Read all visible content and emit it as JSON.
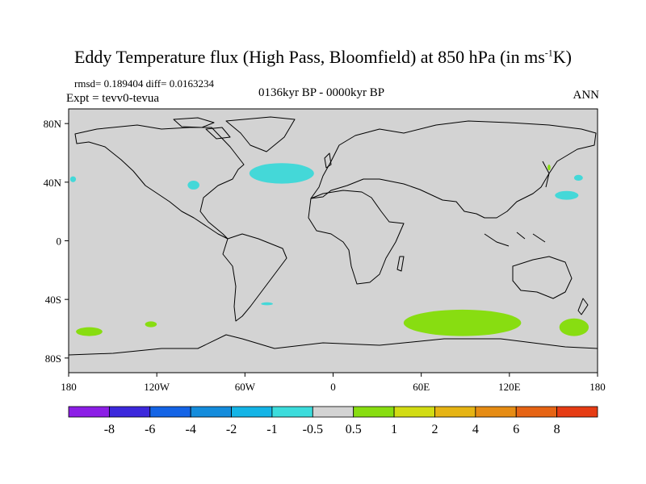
{
  "title": {
    "main": "Eddy Temperature flux (High Pass, Bloomfield) at 850 hPa (in ms",
    "sup": "-1",
    "end": "K)"
  },
  "stats": "rmsd= 0.189404 diff= 0.0163234",
  "expt": "Expt = tevv0-tevua",
  "period": "0136kyr BP - 0000kyr BP",
  "season": "ANN",
  "map": {
    "background_color": "#d3d3d3",
    "lon_ticks": [
      {
        "value": -180,
        "label": "180"
      },
      {
        "value": -120,
        "label": "120W"
      },
      {
        "value": -60,
        "label": "60W"
      },
      {
        "value": 0,
        "label": "0"
      },
      {
        "value": 60,
        "label": "60E"
      },
      {
        "value": 120,
        "label": "120E"
      },
      {
        "value": 180,
        "label": "180"
      }
    ],
    "lat_ticks": [
      {
        "value": 80,
        "label": "80N"
      },
      {
        "value": 40,
        "label": "40N"
      },
      {
        "value": 0,
        "label": "0"
      },
      {
        "value": -40,
        "label": "40S"
      },
      {
        "value": -80,
        "label": "80S"
      }
    ],
    "anomaly_regions": [
      {
        "name": "north-atlantic",
        "color": "#44d8d8",
        "lon": -35,
        "lat": 46,
        "rlon": 22,
        "rlat": 7
      },
      {
        "name": "us-east",
        "color": "#44d8d8",
        "lon": -95,
        "lat": 38,
        "rlon": 4,
        "rlat": 3
      },
      {
        "name": "nw-pacific",
        "color": "#44d8d8",
        "lon": 159,
        "lat": 31,
        "rlon": 8,
        "rlat": 3
      },
      {
        "name": "north-pacific-east",
        "color": "#44d8d8",
        "lon": 167,
        "lat": 43,
        "rlon": 3,
        "rlat": 2
      },
      {
        "name": "east-pacific",
        "color": "#44d8d8",
        "lon": -177,
        "lat": 42,
        "rlon": 2,
        "rlat": 2
      },
      {
        "name": "south-atlantic",
        "color": "#44d8d8",
        "lon": -45,
        "lat": -43,
        "rlon": 4,
        "rlat": 1
      },
      {
        "name": "southern-indian-ocean",
        "color": "#88dd11",
        "lon": 88,
        "lat": -56,
        "rlon": 40,
        "rlat": 9
      },
      {
        "name": "south-pacific-west",
        "color": "#88dd11",
        "lon": -166,
        "lat": -62,
        "rlon": 9,
        "rlat": 3
      },
      {
        "name": "south-pacific-central",
        "color": "#88dd11",
        "lon": -124,
        "lat": -57,
        "rlon": 4,
        "rlat": 2
      },
      {
        "name": "south-tasman",
        "color": "#88dd11",
        "lon": 164,
        "lat": -59,
        "rlon": 10,
        "rlat": 6
      },
      {
        "name": "japan-spot",
        "color": "#88dd11",
        "lon": 147,
        "lat": 50,
        "rlon": 1,
        "rlat": 2
      }
    ]
  },
  "colorbar": {
    "colors": [
      "#8c1ee6",
      "#3c28dc",
      "#1464e6",
      "#148cdc",
      "#14b4e6",
      "#3cdcdc",
      "#d3d3d3",
      "#88dd11",
      "#d2dc14",
      "#e6b414",
      "#e68c14",
      "#e66414",
      "#e63c14"
    ],
    "labels": [
      "-8",
      "-6",
      "-4",
      "-2",
      "-1",
      "-0.5",
      "0.5",
      "1",
      "2",
      "4",
      "6",
      "8"
    ]
  }
}
